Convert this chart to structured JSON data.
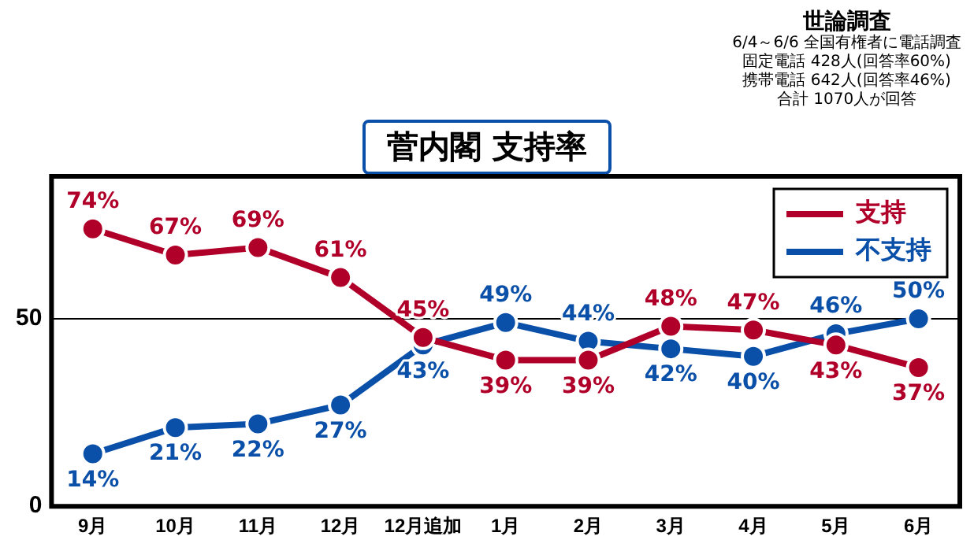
{
  "chart_data": {
    "type": "line",
    "title": "菅内閣 支持率",
    "annotations": [
      "世論調査",
      "6/4～6/6 全国有権者に電話調査",
      "固定電話 428人(回答率60%)",
      "携帯電話 642人(回答率46%)",
      "合計 1070人が回答"
    ],
    "categories": [
      "9月",
      "10月",
      "11月",
      "12月",
      "12月追加",
      "1月",
      "2月",
      "3月",
      "4月",
      "5月",
      "6月"
    ],
    "series": [
      {
        "name": "支持",
        "color": "#b0002a",
        "values": [
          74,
          67,
          69,
          61,
          45,
          39,
          39,
          48,
          47,
          43,
          37
        ],
        "value_labels": [
          "74%",
          "67%",
          "69%",
          "61%",
          "45%",
          "39%",
          "39%",
          "48%",
          "47%",
          "43%",
          "37%"
        ]
      },
      {
        "name": "不支持",
        "color": "#0a4fa8",
        "values": [
          14,
          21,
          22,
          27,
          43,
          49,
          44,
          42,
          40,
          46,
          50
        ],
        "value_labels": [
          "14%",
          "21%",
          "22%",
          "27%",
          "43%",
          "49%",
          "44%",
          "42%",
          "40%",
          "46%",
          "50%"
        ]
      }
    ],
    "ylim": [
      0,
      88
    ],
    "yticks": [
      0,
      50
    ],
    "grid": "y",
    "legend": "top right",
    "marker": "circle",
    "line_style": "solid"
  }
}
